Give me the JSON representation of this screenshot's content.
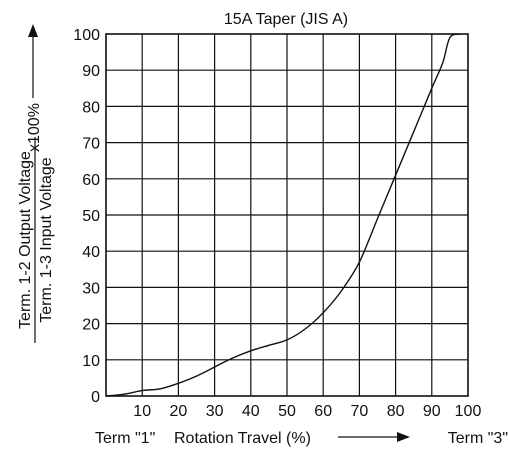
{
  "chart_data": {
    "type": "line",
    "title": "15A Taper (JIS A)",
    "xlabel": "Rotation Travel (%)",
    "x_start_label": "Term \"1\"",
    "x_end_label": "Term \"3\"",
    "ylabel_numerator": "Term. 1-2 Output Voltage",
    "ylabel_denominator": "Term. 1-3 Input Voltage",
    "ylabel_multiplier": "x100%",
    "xlim": [
      0,
      100
    ],
    "ylim": [
      0,
      100
    ],
    "x_ticks": [
      "10",
      "20",
      "30",
      "40",
      "50",
      "60",
      "70",
      "80",
      "90",
      "100"
    ],
    "y_ticks": [
      "0",
      "10",
      "20",
      "30",
      "40",
      "50",
      "60",
      "70",
      "80",
      "90",
      "100"
    ],
    "grid": true,
    "series": [
      {
        "x": [
          0,
          5,
          10,
          15,
          20,
          25,
          30,
          35,
          40,
          45,
          50,
          55,
          60,
          65,
          70,
          75,
          80,
          85,
          90,
          93,
          95,
          98
        ],
        "y": [
          0,
          0.5,
          1.5,
          2,
          3.5,
          5.5,
          8,
          10.5,
          12.5,
          14,
          15.5,
          18.5,
          23,
          29,
          37,
          49,
          61,
          73,
          85,
          92,
          99,
          100
        ]
      }
    ]
  }
}
